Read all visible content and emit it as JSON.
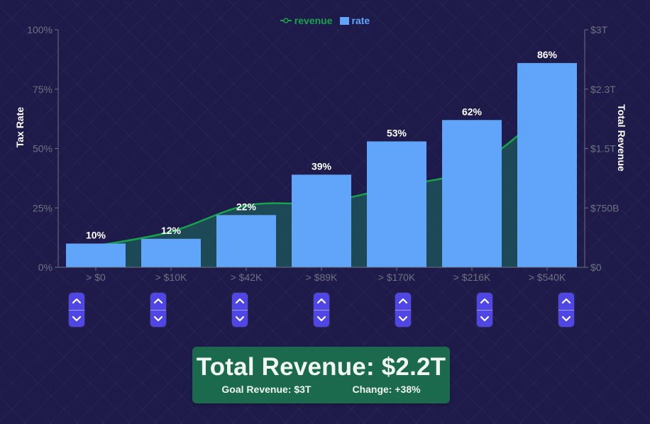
{
  "chart_data": {
    "type": "bar",
    "categories": [
      "> $0",
      "> $10K",
      "> $42K",
      "> $89K",
      "> $170K",
      "> $216K",
      "> $540K"
    ],
    "series": [
      {
        "name": "rate",
        "axis": "left",
        "values": [
          10,
          12,
          22,
          39,
          53,
          62,
          86
        ],
        "data_labels": [
          "10%",
          "12%",
          "22%",
          "39%",
          "53%",
          "62%",
          "86%"
        ]
      },
      {
        "name": "revenue",
        "axis": "right",
        "type": "area",
        "values": [
          0.27,
          0.45,
          0.78,
          0.82,
          1.02,
          1.25,
          1.97
        ]
      }
    ],
    "ylabel": "Tax Rate",
    "ylabel_right": "Total Revenue",
    "ylim": [
      0,
      100
    ],
    "ylim_right": [
      0,
      3
    ],
    "yticks": [
      "0%",
      "25%",
      "50%",
      "75%",
      "100%"
    ],
    "yticks_right": [
      "$0",
      "$750B",
      "$1.5T",
      "$2.3T",
      "$3T"
    ],
    "legend_position": "top-center",
    "grid": false
  },
  "colors": {
    "background": "#1e1b4b",
    "bar": "#60a5fa",
    "line": "#16a34a",
    "area_fill": "#1d5a5a",
    "axis": "#6b7280",
    "tick_text": "#6b7280",
    "stepper": "#4f46e5",
    "summary_bg": "#1c6a4d"
  },
  "legend": {
    "revenue_label": "revenue",
    "rate_label": "rate"
  },
  "summary": {
    "headline": "Total Revenue: $2.2T",
    "goal": "Goal Revenue: $3T",
    "change": "Change: +38%"
  },
  "icons": {
    "up": "chevron-up-icon",
    "down": "chevron-down-icon"
  }
}
